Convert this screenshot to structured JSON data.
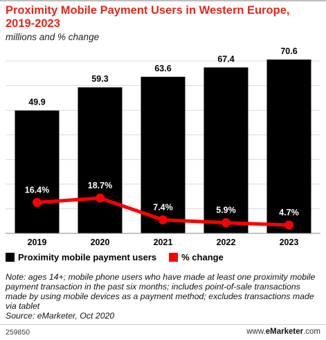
{
  "title": "Proximity Mobile Payment Users in Western Europe, 2019-2023",
  "subtitle": "millions and % change",
  "colors": {
    "bars": "#000000",
    "line": "#ff0000",
    "title": "#e4271b"
  },
  "legend": {
    "bars_label": "Proximity mobile payment users",
    "line_label": "% change"
  },
  "chart_data": {
    "type": "bar",
    "categories": [
      "2019",
      "2020",
      "2021",
      "2022",
      "2023"
    ],
    "series": [
      {
        "name": "Proximity mobile payment users",
        "type": "bar",
        "values": [
          49.9,
          59.3,
          63.6,
          67.4,
          70.6
        ],
        "labels": [
          "49.9",
          "59.3",
          "63.6",
          "67.4",
          "70.6"
        ]
      },
      {
        "name": "% change",
        "type": "line",
        "values": [
          16.4,
          18.7,
          7.4,
          5.9,
          4.7
        ],
        "labels": [
          "16.4%",
          "18.7%",
          "7.4%",
          "5.9%",
          "4.7%"
        ]
      }
    ],
    "title": "Proximity Mobile Payment Users in Western Europe, 2019-2023",
    "subtitle": "millions and % change",
    "legend_position": "bottom-left",
    "grid": true
  },
  "note": "Note: ages 14+; mobile phone users who have made at least one proximity mobile payment transaction in the past six months; includes point-of-sale transactions made by using mobile devices as a payment method; excludes transactions made via tablet",
  "source": "Source: eMarketer, Oct 2020",
  "footer": {
    "chart_id": "259850",
    "brand_prefix": "www.",
    "brand_name": "eMarketer",
    "brand_suffix": ".com"
  }
}
